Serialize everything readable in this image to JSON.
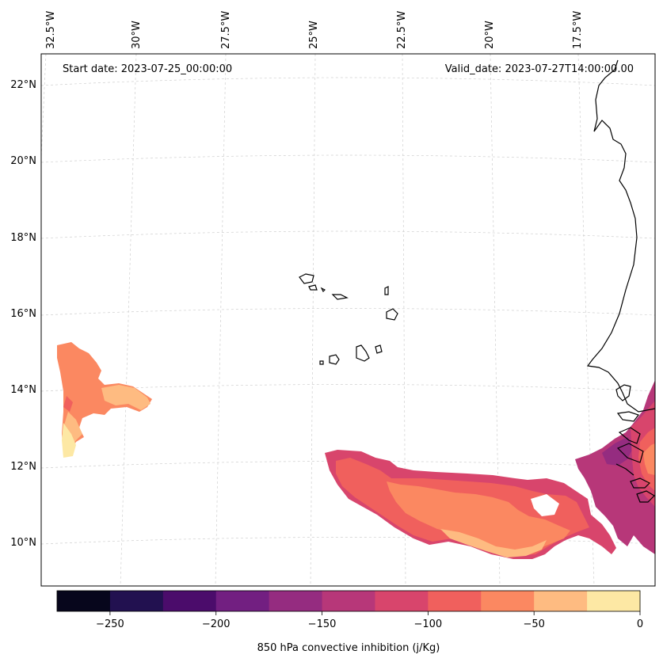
{
  "map": {
    "start_label": "Start date: 2023-07-25_00:00:00",
    "valid_label": "Valid_date: 2023-07-27T14:00:00.00",
    "lon_labels": [
      "32.5°W",
      "30°W",
      "27.5°W",
      "25°W",
      "22.5°W",
      "20°W",
      "17.5°W"
    ],
    "lat_labels": [
      "22°N",
      "20°N",
      "18°N",
      "16°N",
      "14°N",
      "12°N",
      "10°N"
    ]
  },
  "colorbar": {
    "label": "850 hPa convective inhibition (j/Kg)",
    "ticks": [
      "−250",
      "−200",
      "−150",
      "−100",
      "−50",
      "0"
    ],
    "levels": [
      -275,
      -250,
      -225,
      -200,
      -175,
      -150,
      -125,
      -100,
      -75,
      -50,
      -25,
      0
    ],
    "colors": [
      "#07061c",
      "#221150",
      "#4b0c6b",
      "#721f81",
      "#952c80",
      "#b73779",
      "#d8456c",
      "#f0605d",
      "#fb8861",
      "#febb81",
      "#fde8a4"
    ]
  }
}
